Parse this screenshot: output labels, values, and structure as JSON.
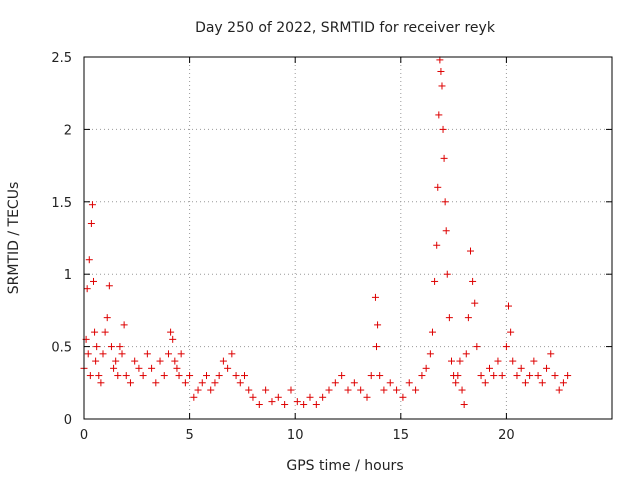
{
  "chart_data": {
    "type": "scatter",
    "title": "Day 250 of 2022, SRMTID for receiver reyk",
    "xlabel": "GPS time / hours",
    "ylabel": "SRMTID / TECUs",
    "xlim": [
      0,
      25
    ],
    "ylim": [
      0,
      2.5
    ],
    "x_ticks": [
      0,
      5,
      10,
      15,
      20
    ],
    "y_ticks": [
      0,
      0.5,
      1,
      1.5,
      2,
      2.5
    ],
    "x_tick_labels": [
      "0",
      "5",
      "10",
      "15",
      "20"
    ],
    "y_tick_labels": [
      "0",
      "0.5",
      "1",
      "1.5",
      "2",
      "2.5"
    ],
    "grid": true,
    "marker": "+",
    "color": "#dd0000",
    "series": [
      {
        "name": "reyk",
        "x": [
          0.0,
          0.1,
          0.15,
          0.2,
          0.25,
          0.3,
          0.35,
          0.4,
          0.45,
          0.5,
          0.55,
          0.6,
          0.7,
          0.8,
          0.9,
          1.0,
          1.1,
          1.2,
          1.3,
          1.4,
          1.5,
          1.6,
          1.7,
          1.8,
          1.9,
          2.0,
          2.2,
          2.4,
          2.6,
          2.8,
          3.0,
          3.2,
          3.4,
          3.6,
          3.8,
          4.0,
          4.1,
          4.2,
          4.3,
          4.4,
          4.5,
          4.6,
          4.8,
          5.0,
          5.2,
          5.4,
          5.6,
          5.8,
          6.0,
          6.2,
          6.4,
          6.6,
          6.8,
          7.0,
          7.2,
          7.4,
          7.6,
          7.8,
          8.0,
          8.3,
          8.6,
          8.9,
          9.2,
          9.5,
          9.8,
          10.1,
          10.4,
          10.7,
          11.0,
          11.3,
          11.6,
          11.9,
          12.2,
          12.5,
          12.8,
          13.1,
          13.4,
          13.6,
          13.8,
          13.85,
          13.9,
          14.0,
          14.2,
          14.5,
          14.8,
          15.1,
          15.4,
          15.7,
          16.0,
          16.2,
          16.4,
          16.5,
          16.6,
          16.7,
          16.75,
          16.8,
          16.85,
          16.9,
          16.95,
          17.0,
          17.05,
          17.1,
          17.15,
          17.2,
          17.3,
          17.4,
          17.5,
          17.6,
          17.7,
          17.8,
          17.9,
          18.0,
          18.1,
          18.2,
          18.3,
          18.4,
          18.5,
          18.6,
          18.8,
          19.0,
          19.2,
          19.4,
          19.6,
          19.8,
          20.0,
          20.1,
          20.2,
          20.3,
          20.5,
          20.7,
          20.9,
          21.1,
          21.3,
          21.5,
          21.7,
          21.9,
          22.1,
          22.3,
          22.5,
          22.7,
          22.9
        ],
        "y": [
          0.35,
          0.55,
          0.9,
          0.45,
          1.1,
          0.3,
          1.35,
          1.48,
          0.95,
          0.6,
          0.4,
          0.5,
          0.3,
          0.25,
          0.45,
          0.6,
          0.7,
          0.92,
          0.5,
          0.35,
          0.4,
          0.3,
          0.5,
          0.45,
          0.65,
          0.3,
          0.25,
          0.4,
          0.35,
          0.3,
          0.45,
          0.35,
          0.25,
          0.4,
          0.3,
          0.45,
          0.6,
          0.55,
          0.4,
          0.35,
          0.3,
          0.45,
          0.25,
          0.3,
          0.15,
          0.2,
          0.25,
          0.3,
          0.2,
          0.25,
          0.3,
          0.4,
          0.35,
          0.45,
          0.3,
          0.25,
          0.3,
          0.2,
          0.15,
          0.1,
          0.2,
          0.12,
          0.15,
          0.1,
          0.2,
          0.12,
          0.1,
          0.15,
          0.1,
          0.15,
          0.2,
          0.25,
          0.3,
          0.2,
          0.25,
          0.2,
          0.15,
          0.3,
          0.84,
          0.5,
          0.65,
          0.3,
          0.2,
          0.25,
          0.2,
          0.15,
          0.25,
          0.2,
          0.3,
          0.35,
          0.45,
          0.6,
          0.95,
          1.2,
          1.6,
          2.1,
          2.48,
          2.4,
          2.3,
          2.0,
          1.8,
          1.5,
          1.3,
          1.0,
          0.7,
          0.4,
          0.3,
          0.25,
          0.3,
          0.4,
          0.2,
          0.1,
          0.45,
          0.7,
          1.16,
          0.95,
          0.8,
          0.5,
          0.3,
          0.25,
          0.35,
          0.3,
          0.4,
          0.3,
          0.5,
          0.78,
          0.6,
          0.4,
          0.3,
          0.35,
          0.25,
          0.3,
          0.4,
          0.3,
          0.25,
          0.35,
          0.45,
          0.3,
          0.2,
          0.25,
          0.3
        ]
      }
    ]
  }
}
